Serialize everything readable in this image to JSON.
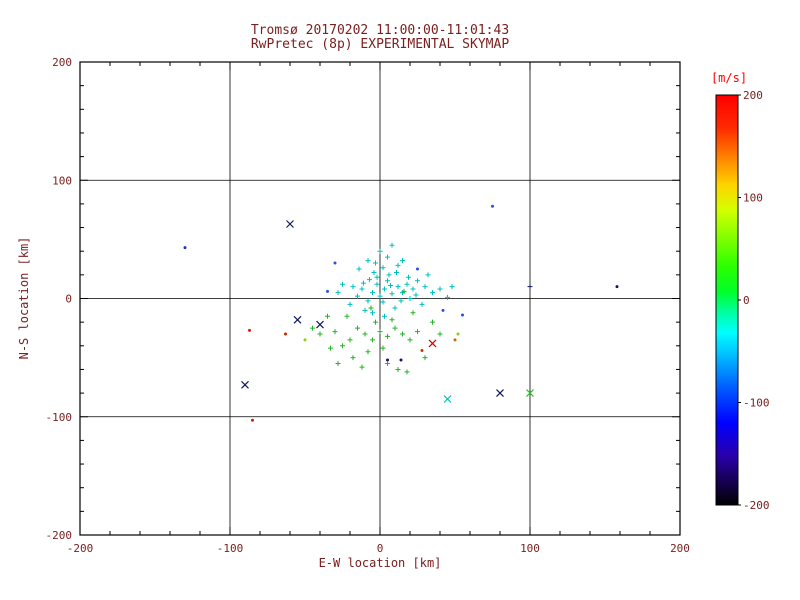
{
  "style": {
    "text_color": "#7a2020",
    "axis_color": "#000000",
    "cbar_label_color": "#ff0000",
    "background": "#ffffff"
  },
  "chart_data": {
    "type": "scatter",
    "title": "Tromsø 20170202 11:00:00-11:01:43",
    "subtitle": "RwPretec (8p) EXPERIMENTAL SKYMAP",
    "xlabel": "E-W location [km]",
    "ylabel": "N-S location [km]",
    "xlim": [
      -200,
      200
    ],
    "ylim": [
      -200,
      200
    ],
    "xticks": [
      -200,
      -100,
      0,
      100,
      200
    ],
    "yticks": [
      -200,
      -100,
      0,
      100,
      200
    ],
    "grid": [
      -100,
      0,
      100
    ],
    "grid_on": true,
    "legend": "none",
    "point_value_unit": "m/s",
    "colorbar": {
      "label": "[m/s]",
      "ticks": [
        200,
        100,
        0,
        -100,
        -200
      ],
      "range": [
        -200,
        200
      ],
      "stops": [
        [
          0,
          "#ff0000"
        ],
        [
          8,
          "#ff2a00"
        ],
        [
          15,
          "#ff7f00"
        ],
        [
          22,
          "#ffd400"
        ],
        [
          28,
          "#d4ff00"
        ],
        [
          35,
          "#7fff00"
        ],
        [
          42,
          "#2aff00"
        ],
        [
          48,
          "#00ff2a"
        ],
        [
          53,
          "#00ff9f"
        ],
        [
          58,
          "#00ffff"
        ],
        [
          65,
          "#00aaff"
        ],
        [
          72,
          "#0055ff"
        ],
        [
          80,
          "#0000ff"
        ],
        [
          88,
          "#2a00aa"
        ],
        [
          94,
          "#150055"
        ],
        [
          100,
          "#000000"
        ]
      ]
    },
    "points": [
      [
        -130,
        43,
        "#2233bb",
        "."
      ],
      [
        -60,
        63,
        "#10185e",
        "x"
      ],
      [
        75,
        78,
        "#2255dd",
        "."
      ],
      [
        158,
        10,
        "#10185e",
        "."
      ],
      [
        100,
        10,
        "#10185e",
        "+"
      ],
      [
        -90,
        -73,
        "#10185e",
        "x"
      ],
      [
        45,
        -85,
        "#00bfbf",
        "x"
      ],
      [
        80,
        -80,
        "#10185e",
        "x"
      ],
      [
        100,
        -80,
        "#33bb33",
        "x"
      ],
      [
        -85,
        -103,
        "#cc2200",
        "."
      ],
      [
        -55,
        -18,
        "#10185e",
        "x"
      ],
      [
        -40,
        -22,
        "#10185e",
        "x"
      ],
      [
        -87,
        -27,
        "#cc2200",
        "."
      ],
      [
        -63,
        -30,
        "#cc2200",
        "."
      ],
      [
        35,
        -38,
        "#cc0000",
        "x"
      ],
      [
        28,
        -44,
        "#cc3300",
        "."
      ],
      [
        14,
        -52,
        "#10185e",
        "."
      ],
      [
        50,
        -35,
        "#cc6600",
        "."
      ],
      [
        5,
        -52,
        "#10185e",
        "."
      ],
      [
        52,
        -30,
        "#88cc22",
        "."
      ],
      [
        -50,
        -35,
        "#88cc22",
        "."
      ],
      [
        -35,
        6,
        "#2255dd",
        "."
      ],
      [
        25,
        25,
        "#2255dd",
        "."
      ],
      [
        -30,
        30,
        "#2255dd",
        "."
      ],
      [
        42,
        -10,
        "#2255dd",
        "."
      ],
      [
        55,
        -14,
        "#2255dd",
        "."
      ],
      [
        0,
        2,
        "#00bfbf",
        "+"
      ],
      [
        3,
        8,
        "#00bfbf",
        "+"
      ],
      [
        -2,
        12,
        "#00bfbf",
        "+"
      ],
      [
        5,
        15,
        "#00bfbf",
        "+"
      ],
      [
        -5,
        5,
        "#00bfbf",
        "+"
      ],
      [
        2,
        -3,
        "#00bfbf",
        "+"
      ],
      [
        8,
        4,
        "#00bfbf",
        "+"
      ],
      [
        -8,
        -2,
        "#00bfbf",
        "+"
      ],
      [
        12,
        10,
        "#00bfbf",
        "+"
      ],
      [
        -12,
        8,
        "#00bfbf",
        "+"
      ],
      [
        6,
        20,
        "#00bfbf",
        "+"
      ],
      [
        -4,
        22,
        "#00bfbf",
        "+"
      ],
      [
        10,
        -8,
        "#00bfbf",
        "+"
      ],
      [
        -10,
        -10,
        "#00bfbf",
        "+"
      ],
      [
        15,
        5,
        "#00bfbf",
        "+"
      ],
      [
        18,
        12,
        "#00bfbf",
        "+"
      ],
      [
        -15,
        2,
        "#00bfbf",
        "+"
      ],
      [
        -18,
        10,
        "#00bfbf",
        "+"
      ],
      [
        20,
        0,
        "#00bfbf",
        "+"
      ],
      [
        22,
        8,
        "#00bfbf",
        "+"
      ],
      [
        -20,
        -5,
        "#00bfbf",
        "+"
      ],
      [
        25,
        15,
        "#00bfbf",
        "+"
      ],
      [
        -3,
        30,
        "#00bfbf",
        "+"
      ],
      [
        5,
        35,
        "#00bfbf",
        "+"
      ],
      [
        12,
        28,
        "#00bfbf",
        "+"
      ],
      [
        -8,
        32,
        "#00bfbf",
        "+"
      ],
      [
        0,
        40,
        "#00bfbf",
        "+"
      ],
      [
        8,
        45,
        "#00bfbf",
        "+"
      ],
      [
        -14,
        25,
        "#00bfbf",
        "+"
      ],
      [
        30,
        10,
        "#00bfbf",
        "+"
      ],
      [
        35,
        5,
        "#00bfbf",
        "+"
      ],
      [
        28,
        -5,
        "#00bfbf",
        "+"
      ],
      [
        -25,
        12,
        "#00bfbf",
        "+"
      ],
      [
        40,
        8,
        "#00bfbf",
        "+"
      ],
      [
        45,
        1,
        "#00bfbf",
        "+"
      ],
      [
        -5,
        -12,
        "#00bfbf",
        "+"
      ],
      [
        3,
        -15,
        "#00bfbf",
        "+"
      ],
      [
        -28,
        5,
        "#00bfbf",
        "+"
      ],
      [
        32,
        20,
        "#00bfbf",
        "+"
      ],
      [
        15,
        32,
        "#00bfbf",
        "+"
      ],
      [
        48,
        10,
        "#00bfbf",
        "+"
      ],
      [
        -2,
        18,
        "#00bfbf",
        "+"
      ],
      [
        7,
        11,
        "#00bfbf",
        "+"
      ],
      [
        -7,
        16,
        "#00bfbf",
        "+"
      ],
      [
        11,
        22,
        "#00bfbf",
        "+"
      ],
      [
        2,
        26,
        "#00bfbf",
        "+"
      ],
      [
        19,
        18,
        "#00bfbf",
        "+"
      ],
      [
        -11,
        13,
        "#00bfbf",
        "+"
      ],
      [
        14,
        -2,
        "#00bfbf",
        "+"
      ],
      [
        24,
        3,
        "#00bfbf",
        "+"
      ],
      [
        -15,
        -25,
        "#22b422",
        "+"
      ],
      [
        -10,
        -30,
        "#22b422",
        "+"
      ],
      [
        -5,
        -35,
        "#22b422",
        "+"
      ],
      [
        0,
        -28,
        "#22b422",
        "+"
      ],
      [
        5,
        -32,
        "#22b422",
        "+"
      ],
      [
        10,
        -25,
        "#22b422",
        "+"
      ],
      [
        -20,
        -35,
        "#22b422",
        "+"
      ],
      [
        -25,
        -40,
        "#22b422",
        "+"
      ],
      [
        15,
        -30,
        "#22b422",
        "+"
      ],
      [
        -30,
        -28,
        "#22b422",
        "+"
      ],
      [
        -8,
        -45,
        "#22b422",
        "+"
      ],
      [
        -18,
        -50,
        "#22b422",
        "+"
      ],
      [
        -12,
        -58,
        "#22b422",
        "+"
      ],
      [
        5,
        -55,
        "#22b422",
        "+"
      ],
      [
        12,
        -60,
        "#22b422",
        "+"
      ],
      [
        20,
        -35,
        "#22b422",
        "+"
      ],
      [
        -35,
        -15,
        "#22b422",
        "+"
      ],
      [
        -40,
        -30,
        "#22b422",
        "+"
      ],
      [
        -3,
        -20,
        "#22b422",
        "+"
      ],
      [
        8,
        -18,
        "#22b422",
        "+"
      ],
      [
        25,
        -28,
        "#22b422",
        "+"
      ],
      [
        -22,
        -15,
        "#22b422",
        "+"
      ],
      [
        30,
        -50,
        "#22b422",
        "+"
      ],
      [
        18,
        -62,
        "#22b422",
        "+"
      ],
      [
        -28,
        -55,
        "#22b422",
        "+"
      ],
      [
        35,
        -20,
        "#22b422",
        "+"
      ],
      [
        -45,
        -25,
        "#22b422",
        "+"
      ],
      [
        2,
        -42,
        "#22b422",
        "+"
      ],
      [
        -6,
        -8,
        "#22b422",
        "+"
      ],
      [
        22,
        -12,
        "#22b422",
        "+"
      ],
      [
        40,
        -30,
        "#22b422",
        "+"
      ],
      [
        -33,
        -42,
        "#22b422",
        "+"
      ],
      [
        16,
        6,
        "#22b422",
        "+"
      ]
    ]
  }
}
